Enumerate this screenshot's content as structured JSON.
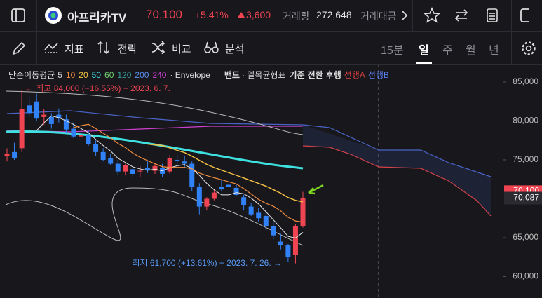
{
  "header": {
    "name": "아프리카TV",
    "price": "70,100",
    "change_pct": "+5.41%",
    "change": "3,600",
    "volume_label": "거래량",
    "volume": "272,648",
    "amount_label": "거래대금"
  },
  "toolbar": {
    "indicator": "지표",
    "strategy": "전략",
    "compare": "비교",
    "analysis": "분석",
    "periods": [
      "15분",
      "일",
      "주",
      "월",
      "년"
    ],
    "selected_period": 1
  },
  "chart": {
    "type": "candlestick",
    "legend": {
      "ma_label": "단순이동평균",
      "ma_periods": [
        {
          "text": "5",
          "color": "#d8d8dc"
        },
        {
          "text": "10",
          "color": "#f08c3c"
        },
        {
          "text": "20",
          "color": "#f5c242"
        },
        {
          "text": "50",
          "color": "#3ee0e0"
        },
        {
          "text": "60",
          "color": "#6fd06f"
        },
        {
          "text": "120",
          "color": "#3aa0a0"
        },
        {
          "text": "200",
          "color": "#5a8ef0"
        },
        {
          "text": "240",
          "color": "#d040d0"
        }
      ],
      "envelope": "· Envelope",
      "band": "밴드",
      "ichimoku": "· 일목균형표",
      "base": "기준",
      "conversion": "전환",
      "lagging": "후행",
      "lead_a": "선행A",
      "lead_b": "선행B"
    },
    "high_note": "← 최고 84,000 (−16.55%) − 2023. 6. 7.",
    "low_note": "최저 61,700 (+13.61%) − 2023. 7. 26. →",
    "ylim": [
      57250,
      87250
    ],
    "yticks": [
      {
        "value": 85000,
        "label": "85,000"
      },
      {
        "value": 80000,
        "label": "80,000"
      },
      {
        "value": 75000,
        "label": "75,000"
      },
      {
        "value": 65000,
        "label": "65,000"
      },
      {
        "value": 60000,
        "label": "60,000"
      }
    ],
    "crosshair": {
      "value": 70087,
      "label": "70,087"
    },
    "last_price": {
      "value": 70100,
      "label": "70,100"
    },
    "up_color": "#f04452",
    "down_color": "#3182f6",
    "candles": [
      [
        75500,
        76500,
        74800,
        75800
      ],
      [
        76000,
        77200,
        75000,
        75200
      ],
      [
        76500,
        84000,
        76000,
        81500
      ],
      [
        82000,
        83000,
        80500,
        81000
      ],
      [
        82500,
        83500,
        80000,
        80300
      ],
      [
        80500,
        81500,
        79500,
        80800
      ],
      [
        80500,
        81000,
        79000,
        79600
      ],
      [
        80800,
        81600,
        79800,
        80400
      ],
      [
        80200,
        80800,
        78500,
        78900
      ],
      [
        79000,
        79800,
        77800,
        78000
      ],
      [
        78000,
        79500,
        77500,
        78200
      ],
      [
        78200,
        78800,
        76800,
        77000
      ],
      [
        77000,
        77500,
        75500,
        76000
      ],
      [
        76000,
        76500,
        74800,
        75000
      ],
      [
        75200,
        75800,
        74300,
        74500
      ],
      [
        74500,
        75000,
        73000,
        73500
      ],
      [
        73500,
        74500,
        73000,
        74300
      ],
      [
        73800,
        74200,
        72800,
        73200
      ],
      [
        73500,
        74200,
        72800,
        73600
      ],
      [
        74000,
        74800,
        73300,
        73700
      ],
      [
        73600,
        74500,
        73200,
        74200
      ],
      [
        74000,
        74500,
        72800,
        73200
      ],
      [
        73500,
        75600,
        73200,
        75200
      ],
      [
        75000,
        75700,
        74500,
        74900
      ],
      [
        74800,
        75500,
        74000,
        74500
      ],
      [
        74500,
        74800,
        71000,
        71500
      ],
      [
        71500,
        72000,
        68000,
        69000
      ],
      [
        69000,
        70200,
        68500,
        70000
      ],
      [
        70000,
        71300,
        69800,
        70800
      ],
      [
        71500,
        72500,
        71000,
        71200
      ],
      [
        71800,
        72500,
        70800,
        71500
      ],
      [
        71400,
        71900,
        70300,
        70500
      ],
      [
        70200,
        70500,
        68500,
        69200
      ],
      [
        69000,
        69500,
        67800,
        68000
      ],
      [
        68200,
        68800,
        67000,
        67500
      ],
      [
        67800,
        68500,
        66000,
        66500
      ],
      [
        66500,
        67000,
        64800,
        65300
      ],
      [
        64500,
        65500,
        63500,
        64000
      ],
      [
        64000,
        64200,
        61900,
        62500
      ],
      [
        62800,
        66800,
        61700,
        66500
      ],
      [
        66500,
        70900,
        66300,
        70100
      ]
    ]
  }
}
